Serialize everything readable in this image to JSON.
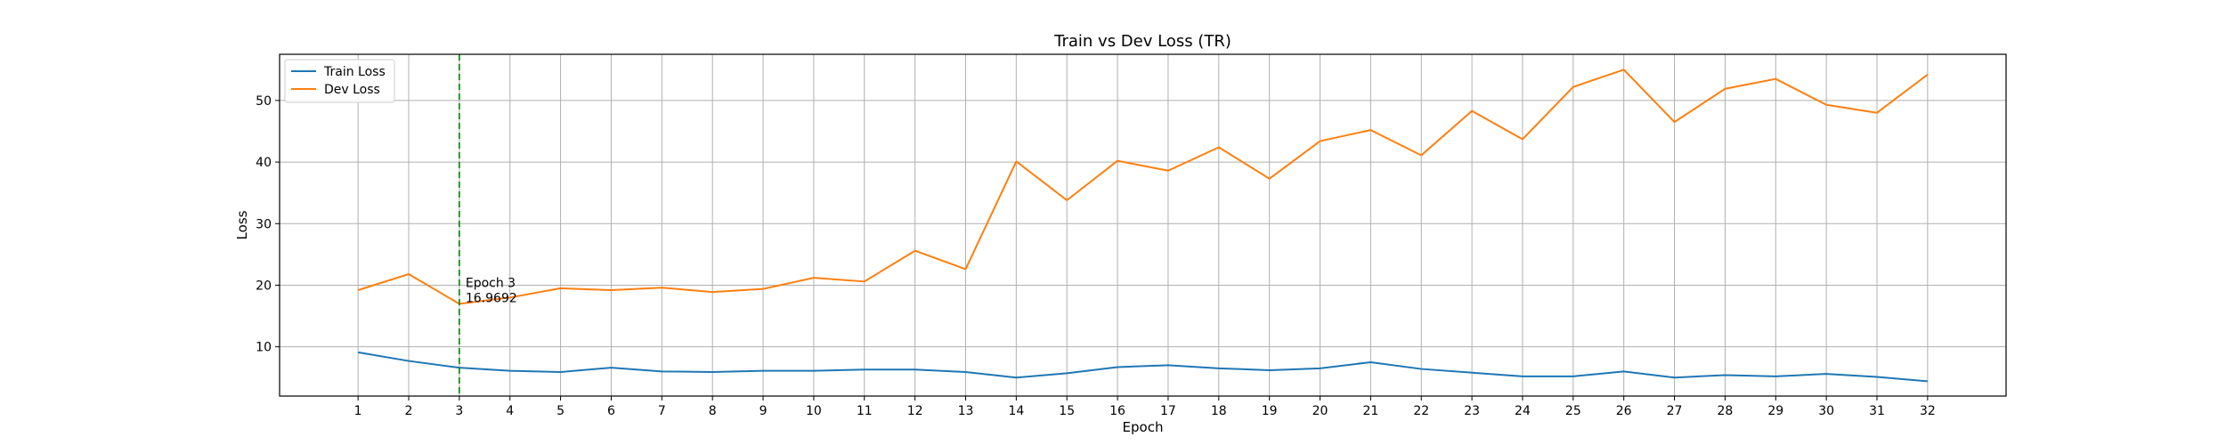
{
  "chart_data": {
    "type": "line",
    "title": "Train vs Dev Loss (TR)",
    "xlabel": "Epoch",
    "ylabel": "Loss",
    "x": [
      1,
      2,
      3,
      4,
      5,
      6,
      7,
      8,
      9,
      10,
      11,
      12,
      13,
      14,
      15,
      16,
      17,
      18,
      19,
      20,
      21,
      22,
      23,
      24,
      25,
      26,
      27,
      28,
      29,
      30,
      31,
      32
    ],
    "xlim": [
      -0.55,
      33.55
    ],
    "ylim": [
      2.0,
      57.5
    ],
    "yticks": [
      10,
      20,
      30,
      40,
      50
    ],
    "grid": true,
    "legend_position": "top-left",
    "series": [
      {
        "name": "Train Loss",
        "color": "#1f77b4",
        "values": [
          9.1,
          7.7,
          6.6,
          6.1,
          5.9,
          6.6,
          6.0,
          5.9,
          6.1,
          6.1,
          6.3,
          6.3,
          5.9,
          5.0,
          5.7,
          6.7,
          7.0,
          6.5,
          6.2,
          6.5,
          7.5,
          6.4,
          5.8,
          5.2,
          5.2,
          6.0,
          5.0,
          5.4,
          5.2,
          5.6,
          5.1,
          4.4
        ]
      },
      {
        "name": "Dev Loss",
        "color": "#ff7f0e",
        "values": [
          19.2,
          21.8,
          16.97,
          18.0,
          19.5,
          19.2,
          19.6,
          18.9,
          19.4,
          21.2,
          20.6,
          25.6,
          22.6,
          40.1,
          33.8,
          40.2,
          38.6,
          42.4,
          37.3,
          43.4,
          45.2,
          41.1,
          48.3,
          43.7,
          52.2,
          55.0,
          46.5,
          51.9,
          53.5,
          49.3,
          48.0,
          54.2
        ]
      }
    ],
    "annotation": {
      "x": 3,
      "line_color": "#008000",
      "line_style": "dashed",
      "label_line1": "Epoch 3",
      "label_line2": "16.9692"
    }
  }
}
